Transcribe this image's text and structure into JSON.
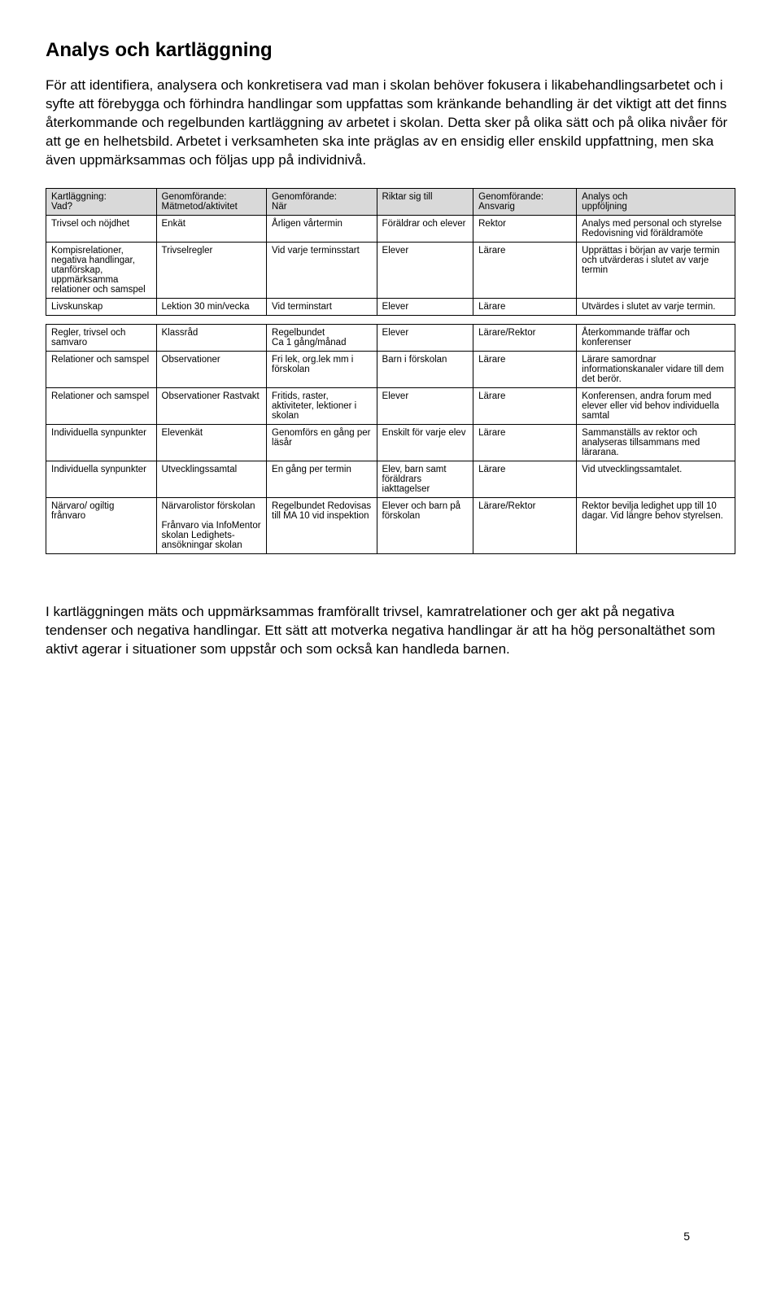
{
  "page": {
    "title": "Analys och kartläggning",
    "intro": "För att identifiera, analysera och konkretisera vad man i skolan behöver fokusera i likabehandlingsarbetet och i syfte att förebygga och förhindra handlingar som uppfattas som kränkande behandling är det viktigt att det finns återkommande och regelbunden kartläggning av arbetet i skolan. Detta sker på olika sätt och på olika nivåer för att ge en helhetsbild. Arbetet i verksamheten ska inte präglas av en ensidig eller enskild uppfattning, men ska även uppmärksammas och följas upp på individnivå.",
    "outro": "I kartläggningen mäts och uppmärksammas framförallt trivsel, kamratrelationer och ger akt på negativa tendenser och negativa handlingar. Ett sätt att motverka negativa handlingar är att ha hög personaltäthet som aktivt agerar i situationer som uppstår och som också kan handleda barnen.",
    "page_number": "5"
  },
  "tables": {
    "top": {
      "headers": [
        "Kartläggning:\nVad?",
        "Genomförande:\nMätmetod/aktivitet",
        "Genomförande:\nNär",
        "Riktar sig till",
        "Genomförande:\nAnsvarig",
        "Analys och\nuppföljning"
      ],
      "rows": [
        [
          "Trivsel och nöjdhet",
          "Enkät",
          "Årligen vårtermin",
          "Föräldrar och elever",
          "Rektor",
          "Analys med personal och styrelse Redovisning vid föräldramöte"
        ],
        [
          "Kompisrelationer, negativa handlingar, utanförskap, uppmärksamma relationer och samspel",
          "Trivselregler",
          "Vid varje terminsstart",
          "Elever",
          "Lärare",
          "Upprättas i början av varje termin och utvärderas i slutet av varje termin"
        ],
        [
          "Livskunskap",
          "Lektion 30 min/vecka",
          "Vid terminstart",
          "Elever",
          "Lärare",
          "Utvärdes i slutet av varje termin."
        ]
      ]
    },
    "bottom": {
      "rows": [
        [
          "Regler, trivsel och samvaro",
          "Klassråd",
          "Regelbundet\nCa 1 gång/månad",
          "Elever",
          "Lärare/Rektor",
          "Återkommande träffar och konferenser"
        ],
        [
          "Relationer och samspel",
          "Observationer",
          "Fri lek, org.lek mm i förskolan",
          "Barn i förskolan",
          "Lärare",
          "Lärare samordnar informationskanaler vidare till dem det berör."
        ],
        [
          "Relationer och samspel",
          "Observationer Rastvakt",
          "Fritids, raster, aktiviteter, lektioner i skolan",
          "Elever",
          "Lärare",
          "Konferensen, andra forum med elever eller vid behov individuella samtal"
        ],
        [
          "Individuella synpunkter",
          "Elevenkät",
          "Genomförs en gång per läsår",
          "Enskilt för varje elev",
          "Lärare",
          "Sammanställs av rektor och analyseras tillsammans med lärarana."
        ],
        [
          "Individuella synpunkter",
          "Utvecklingssamtal",
          "En gång per termin",
          "Elev, barn samt föräldrars iakttagelser",
          "Lärare",
          "Vid utvecklingssamtalet."
        ],
        [
          "Närvaro/ ogiltig frånvaro",
          "Närvarolistor förskolan\n\nFrånvaro via InfoMentor skolan Ledighets-ansökningar skolan",
          "Regelbundet Redovisas till MA 10 vid inspektion",
          "Elever och barn på förskolan",
          "Lärare/Rektor",
          "Rektor bevilja ledighet upp till 10 dagar. Vid längre behov styrelsen."
        ]
      ]
    }
  },
  "style": {
    "column_widths_pct": [
      16,
      16,
      16,
      14,
      15,
      23
    ],
    "header_bg": "#d9d9d9",
    "border_color": "#000000"
  }
}
